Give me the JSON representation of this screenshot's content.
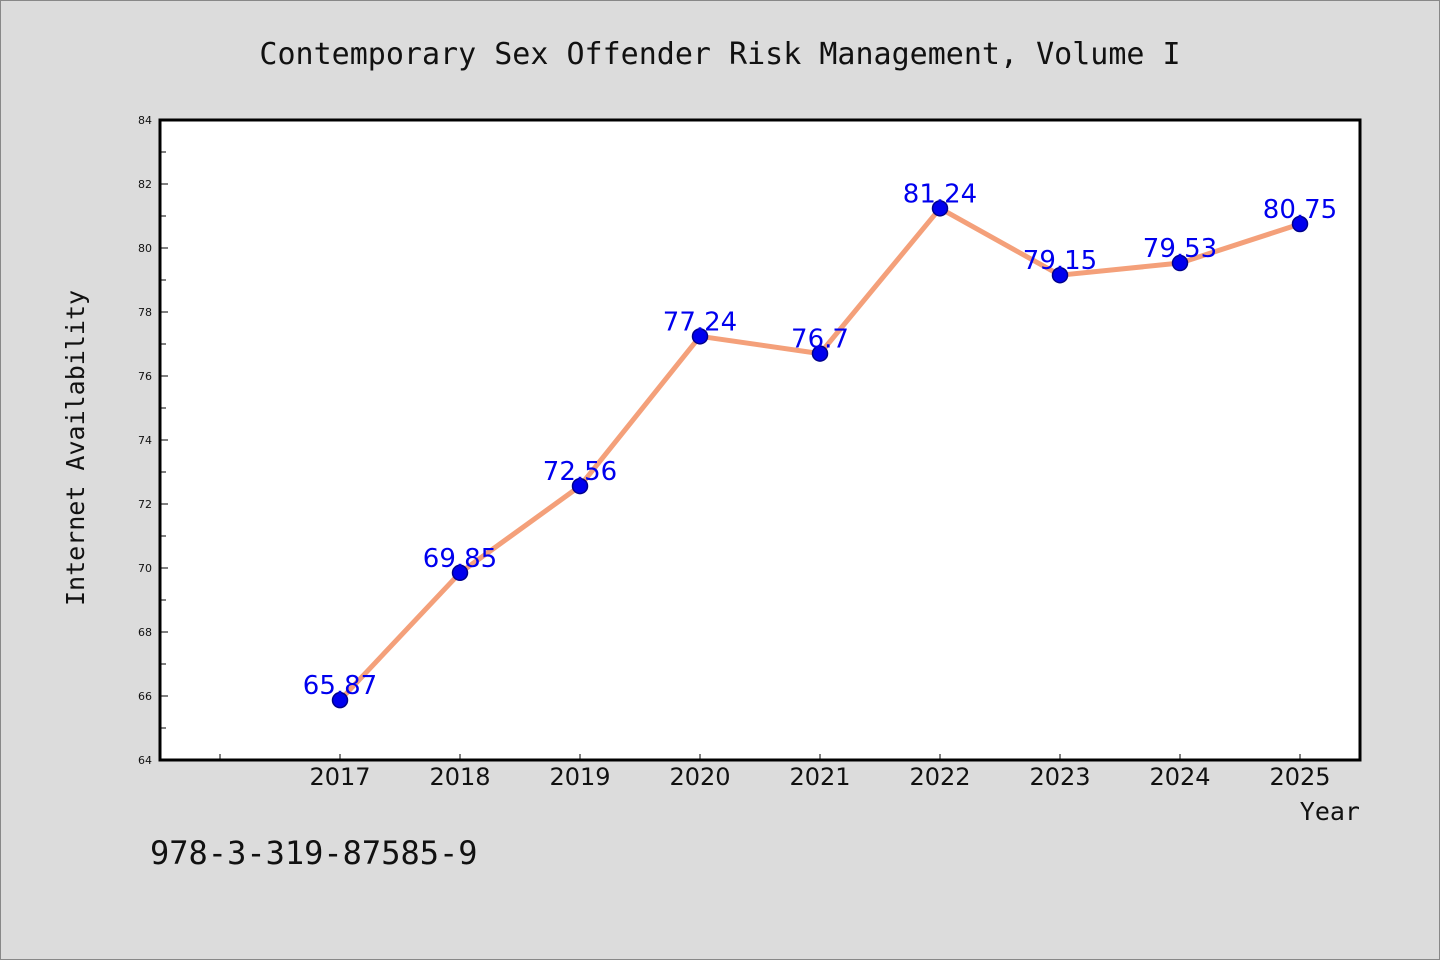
{
  "note": "978-3-319-87585-9",
  "chart_data": {
    "type": "line",
    "title": "Contemporary Sex Offender Risk Management, Volume I",
    "xlabel": "Year",
    "ylabel": "Internet Availability",
    "categories": [
      "2017",
      "2018",
      "2019",
      "2020",
      "2021",
      "2022",
      "2023",
      "2024",
      "2025"
    ],
    "values": [
      65.87,
      69.85,
      72.56,
      77.24,
      76.7,
      81.24,
      79.15,
      79.53,
      80.75
    ],
    "data_labels": [
      "65.87",
      "69.85",
      "72.56",
      "77.24",
      "76.7",
      "81.24",
      "79.15",
      "79.53",
      "80.75"
    ],
    "ylim": [
      64,
      84
    ],
    "yticks": [
      "64",
      "66",
      "68",
      "70",
      "72",
      "74",
      "76",
      "78",
      "80",
      "82",
      "84"
    ],
    "grid": false,
    "colors": {
      "line": "#f4a07a",
      "marker": "#0000ee",
      "marker_edge": "#00008b",
      "label": "#0000ee"
    }
  }
}
